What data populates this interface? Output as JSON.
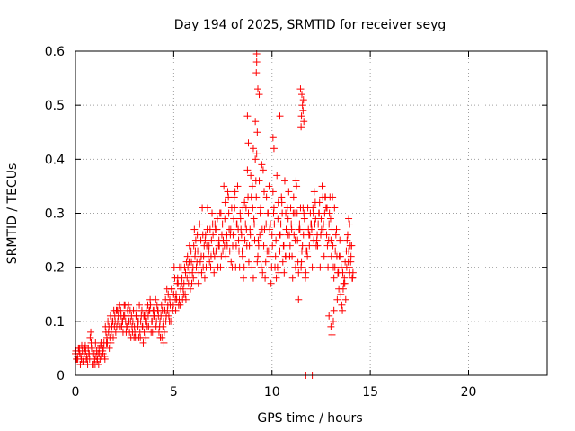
{
  "chart_data": {
    "type": "scatter",
    "title": "Day 194 of 2025, SRMTID for receiver seyg",
    "xlabel": "GPS time / hours",
    "ylabel": "SRMTID / TECUs",
    "xlim": [
      0,
      24
    ],
    "ylim": [
      0,
      0.6
    ],
    "xticks": [
      0,
      5,
      10,
      15,
      20
    ],
    "yticks": [
      0,
      0.1,
      0.2,
      0.3,
      0.4,
      0.5,
      0.6
    ],
    "grid": true,
    "marker": "+",
    "color": "#ff0000",
    "series": [
      {
        "name": "SRMTID",
        "x": [
          0.0,
          0.1,
          0.2,
          0.3,
          0.4,
          0.5,
          0.6,
          0.7,
          0.8,
          0.9,
          1.0,
          1.1,
          1.2,
          1.3,
          1.4,
          1.5,
          1.6,
          1.7,
          1.8,
          1.9,
          2.0,
          2.1,
          2.2,
          2.3,
          2.4,
          2.5,
          2.6,
          2.7,
          2.8,
          2.9,
          3.0,
          3.1,
          3.2,
          3.3,
          3.4,
          3.5,
          3.6,
          3.7,
          3.8,
          3.9,
          4.0,
          4.1,
          4.2,
          4.3,
          4.4,
          4.5,
          4.6,
          4.7,
          4.8,
          4.9,
          5.0,
          5.1,
          5.2,
          5.3,
          5.4,
          5.5,
          5.6,
          5.7,
          5.8,
          5.9,
          6.0,
          6.1,
          6.2,
          6.3,
          6.4,
          6.5,
          6.6,
          6.7,
          6.8,
          6.9,
          7.0,
          7.1,
          7.2,
          7.3,
          7.4,
          7.5,
          7.6,
          7.7,
          7.8,
          7.9,
          8.0,
          8.1,
          8.2,
          8.3,
          8.4,
          8.5,
          8.6,
          8.7,
          8.8,
          8.9,
          9.0,
          9.1,
          9.2,
          9.3,
          9.4,
          9.5,
          9.6,
          9.7,
          9.8,
          9.9,
          10.0,
          10.1,
          10.2,
          10.3,
          10.4,
          10.5,
          10.6,
          10.7,
          10.8,
          10.9,
          11.0,
          11.1,
          11.2,
          11.3,
          11.4,
          11.5,
          11.6,
          11.7,
          11.8,
          11.9,
          12.0,
          12.1,
          12.2,
          12.3,
          12.4,
          12.5,
          12.6,
          12.7,
          12.8,
          12.9,
          13.0,
          13.1,
          13.2,
          13.3,
          13.4,
          13.5,
          13.6,
          13.7,
          13.8,
          13.9,
          14.0,
          14.1,
          0.05,
          0.15,
          0.25,
          0.35,
          0.45,
          0.55,
          0.65,
          0.75,
          0.85,
          0.95,
          1.05,
          1.15,
          1.25,
          1.35,
          1.45,
          1.55,
          1.65,
          1.75,
          1.85,
          1.95,
          2.05,
          2.15,
          2.25,
          2.35,
          2.45,
          2.55,
          2.65,
          2.75,
          2.85,
          2.95,
          3.05,
          3.15,
          3.25,
          3.35,
          3.45,
          3.55,
          3.65,
          3.75,
          3.85,
          3.95,
          4.05,
          4.15,
          4.25,
          4.35,
          4.45,
          4.55,
          4.65,
          4.75,
          4.85,
          4.95,
          5.05,
          5.15,
          5.25,
          5.35,
          5.45,
          5.55,
          5.65,
          5.75,
          5.85,
          5.95,
          6.05,
          6.15,
          6.25,
          6.35,
          6.45,
          6.55,
          6.65,
          6.75,
          6.85,
          6.95,
          7.05,
          7.15,
          7.25,
          7.35,
          7.45,
          7.55,
          7.65,
          7.75,
          7.85,
          7.95,
          8.05,
          8.15,
          8.25,
          8.35,
          8.45,
          8.55,
          8.65,
          8.75,
          8.85,
          8.95,
          9.05,
          9.15,
          9.25,
          9.35,
          9.45,
          9.55,
          9.65,
          9.75,
          9.85,
          9.95,
          10.05,
          10.15,
          10.25,
          10.35,
          10.45,
          10.55,
          10.65,
          10.75,
          10.85,
          10.95,
          11.05,
          11.15,
          11.25,
          11.35,
          11.45,
          11.55,
          11.65,
          11.75,
          11.85,
          11.95,
          12.05,
          12.15,
          12.25,
          12.35,
          12.45,
          12.55,
          12.65,
          12.75,
          12.85,
          12.95,
          13.05,
          13.15,
          13.25,
          13.35,
          13.45,
          13.55,
          13.65,
          13.75,
          13.85,
          13.95,
          14.05,
          0.02,
          0.12,
          0.22,
          0.32,
          0.42,
          0.52,
          0.62,
          0.72,
          0.82,
          0.92,
          1.02,
          1.12,
          1.22,
          1.32,
          1.42,
          1.52,
          1.62,
          1.72,
          1.82,
          1.92,
          2.02,
          2.12,
          2.22,
          2.32,
          2.42,
          2.52,
          2.62,
          2.72,
          2.82,
          2.92,
          3.02,
          3.12,
          3.22,
          3.32,
          3.42,
          3.52,
          3.62,
          3.72,
          3.82,
          3.92,
          4.02,
          4.12,
          4.22,
          4.32,
          4.42,
          4.52,
          4.62,
          4.72,
          4.82,
          4.92,
          5.02,
          5.12,
          5.22,
          5.32,
          5.42,
          5.52,
          5.62,
          5.72,
          5.82,
          5.92,
          6.02,
          6.12,
          6.22,
          6.32,
          6.42,
          6.52,
          6.62,
          6.72,
          6.82,
          6.92,
          7.02,
          7.12,
          7.22,
          7.32,
          7.42,
          7.52,
          7.62,
          7.72,
          7.82,
          7.92,
          8.02,
          8.12,
          8.22,
          8.32,
          8.42,
          8.52,
          8.62,
          8.72,
          8.82,
          8.92,
          9.02,
          9.12,
          9.22,
          9.32,
          9.42,
          9.52,
          9.62,
          9.72,
          9.82,
          9.92,
          10.02,
          10.12,
          10.22,
          10.32,
          10.42,
          10.52,
          10.62,
          10.72,
          10.82,
          10.92,
          11.02,
          11.12,
          11.22,
          11.32,
          11.42,
          11.52,
          11.62,
          11.72,
          11.82,
          11.92,
          12.02,
          12.12,
          12.22,
          12.32,
          12.42,
          12.52,
          12.62,
          12.72,
          12.82,
          12.92,
          13.02,
          13.12,
          13.22,
          13.32,
          13.42,
          13.52,
          13.62,
          13.72,
          13.82,
          13.92,
          14.02,
          14.12,
          0.08,
          0.18,
          0.28,
          0.38,
          0.48,
          0.58,
          0.68,
          0.78,
          0.88,
          0.98,
          1.08,
          1.18,
          1.28,
          1.38,
          1.48,
          1.58,
          1.68,
          1.78,
          1.88,
          1.98,
          2.08,
          2.18,
          2.28,
          2.38,
          2.48,
          2.58,
          2.68,
          2.78,
          2.88,
          2.98,
          3.08,
          3.18,
          3.28,
          3.38,
          3.48,
          3.58,
          3.68,
          3.78,
          3.88,
          3.98,
          4.08,
          4.18,
          4.28,
          4.38,
          4.48,
          4.58,
          4.68,
          4.78,
          4.88,
          4.98,
          5.08,
          5.18,
          5.28,
          5.38,
          5.48,
          5.58,
          5.68,
          5.78,
          5.88,
          5.98,
          6.08,
          6.18,
          6.28,
          6.38,
          6.48,
          6.58,
          6.68,
          6.78,
          6.88,
          6.98,
          7.08,
          7.18,
          7.28,
          7.38,
          7.48,
          7.58,
          7.68,
          7.78,
          7.88,
          7.98,
          8.08,
          8.18,
          8.28,
          8.38,
          8.48,
          8.58,
          8.68,
          8.78,
          8.88,
          8.98,
          9.08,
          9.18,
          9.28,
          9.38,
          9.48,
          9.58,
          9.68,
          9.78,
          9.88,
          9.98,
          10.08,
          10.18,
          10.28,
          10.38,
          10.48,
          10.58,
          10.68,
          10.78,
          10.88,
          10.98,
          11.08,
          11.18,
          11.28,
          11.38,
          11.48,
          11.58,
          11.68,
          11.78,
          11.88,
          11.98,
          12.08,
          12.18,
          12.28,
          12.38,
          12.48,
          12.58,
          12.68,
          12.78,
          12.88,
          12.98,
          13.08,
          13.18,
          13.28,
          13.38,
          13.48,
          13.58,
          13.68,
          13.78,
          13.88,
          13.98,
          14.08,
          9.22,
          9.22,
          9.2,
          9.28,
          9.15,
          9.25,
          9.35,
          8.75,
          8.8,
          9.05,
          11.52,
          11.55,
          11.5,
          11.48,
          11.45,
          11.6,
          11.58,
          11.62,
          10.05,
          10.1,
          10.4,
          11.35,
          12.9,
          13.0,
          13.05,
          13.12,
          13.15,
          12.05,
          13.9,
          13.95,
          11.72
        ],
        "y": [
          0.04,
          0.035,
          0.05,
          0.03,
          0.025,
          0.055,
          0.03,
          0.04,
          0.06,
          0.03,
          0.02,
          0.025,
          0.05,
          0.06,
          0.04,
          0.03,
          0.07,
          0.09,
          0.06,
          0.1,
          0.11,
          0.09,
          0.12,
          0.12,
          0.1,
          0.11,
          0.09,
          0.13,
          0.1,
          0.08,
          0.09,
          0.11,
          0.1,
          0.07,
          0.09,
          0.08,
          0.12,
          0.11,
          0.14,
          0.1,
          0.11,
          0.09,
          0.12,
          0.1,
          0.07,
          0.06,
          0.1,
          0.13,
          0.14,
          0.16,
          0.15,
          0.12,
          0.18,
          0.2,
          0.17,
          0.15,
          0.19,
          0.22,
          0.24,
          0.21,
          0.18,
          0.23,
          0.26,
          0.28,
          0.22,
          0.2,
          0.25,
          0.27,
          0.24,
          0.22,
          0.26,
          0.28,
          0.27,
          0.25,
          0.3,
          0.23,
          0.29,
          0.26,
          0.3,
          0.27,
          0.24,
          0.31,
          0.28,
          0.25,
          0.29,
          0.22,
          0.32,
          0.27,
          0.3,
          0.26,
          0.35,
          0.28,
          0.33,
          0.25,
          0.3,
          0.27,
          0.34,
          0.28,
          0.3,
          0.22,
          0.26,
          0.31,
          0.25,
          0.29,
          0.23,
          0.32,
          0.24,
          0.3,
          0.26,
          0.22,
          0.27,
          0.33,
          0.2,
          0.25,
          0.28,
          0.21,
          0.26,
          0.18,
          0.22,
          0.24,
          0.28,
          0.3,
          0.32,
          0.26,
          0.3,
          0.29,
          0.27,
          0.33,
          0.31,
          0.28,
          0.25,
          0.24,
          0.2,
          0.22,
          0.16,
          0.15,
          0.19,
          0.17,
          0.2,
          0.23,
          0.21,
          0.18,
          0.03,
          0.05,
          0.02,
          0.045,
          0.04,
          0.03,
          0.05,
          0.07,
          0.02,
          0.04,
          0.035,
          0.04,
          0.03,
          0.05,
          0.06,
          0.08,
          0.1,
          0.07,
          0.09,
          0.12,
          0.08,
          0.1,
          0.13,
          0.09,
          0.11,
          0.1,
          0.12,
          0.08,
          0.11,
          0.12,
          0.07,
          0.1,
          0.13,
          0.11,
          0.06,
          0.1,
          0.09,
          0.12,
          0.08,
          0.12,
          0.09,
          0.13,
          0.08,
          0.11,
          0.09,
          0.12,
          0.16,
          0.11,
          0.1,
          0.12,
          0.18,
          0.14,
          0.13,
          0.16,
          0.14,
          0.2,
          0.21,
          0.17,
          0.16,
          0.19,
          0.27,
          0.2,
          0.17,
          0.21,
          0.31,
          0.24,
          0.2,
          0.22,
          0.27,
          0.3,
          0.19,
          0.23,
          0.2,
          0.3,
          0.26,
          0.35,
          0.22,
          0.34,
          0.23,
          0.31,
          0.29,
          0.2,
          0.35,
          0.2,
          0.26,
          0.18,
          0.28,
          0.38,
          0.24,
          0.33,
          0.18,
          0.4,
          0.21,
          0.36,
          0.2,
          0.38,
          0.18,
          0.23,
          0.35,
          0.17,
          0.34,
          0.2,
          0.37,
          0.19,
          0.28,
          0.21,
          0.36,
          0.22,
          0.34,
          0.31,
          0.18,
          0.3,
          0.35,
          0.19,
          0.31,
          0.24,
          0.29,
          0.23,
          0.27,
          0.3,
          0.2,
          0.34,
          0.24,
          0.28,
          0.2,
          0.35,
          0.22,
          0.31,
          0.2,
          0.33,
          0.27,
          0.18,
          0.26,
          0.19,
          0.25,
          0.13,
          0.17,
          0.14,
          0.26,
          0.19,
          0.24,
          0.045,
          0.03,
          0.04,
          0.055,
          0.03,
          0.045,
          0.02,
          0.03,
          0.05,
          0.02,
          0.06,
          0.03,
          0.04,
          0.035,
          0.05,
          0.09,
          0.06,
          0.05,
          0.08,
          0.07,
          0.1,
          0.12,
          0.1,
          0.11,
          0.08,
          0.13,
          0.09,
          0.1,
          0.07,
          0.1,
          0.08,
          0.12,
          0.07,
          0.1,
          0.09,
          0.11,
          0.1,
          0.09,
          0.13,
          0.08,
          0.12,
          0.1,
          0.11,
          0.07,
          0.12,
          0.08,
          0.11,
          0.15,
          0.13,
          0.15,
          0.2,
          0.15,
          0.17,
          0.13,
          0.18,
          0.17,
          0.14,
          0.2,
          0.19,
          0.17,
          0.24,
          0.25,
          0.23,
          0.28,
          0.19,
          0.22,
          0.26,
          0.31,
          0.21,
          0.25,
          0.23,
          0.27,
          0.29,
          0.24,
          0.22,
          0.25,
          0.32,
          0.24,
          0.27,
          0.21,
          0.26,
          0.34,
          0.28,
          0.23,
          0.27,
          0.31,
          0.25,
          0.24,
          0.21,
          0.37,
          0.31,
          0.25,
          0.41,
          0.24,
          0.31,
          0.19,
          0.27,
          0.33,
          0.23,
          0.28,
          0.24,
          0.28,
          0.18,
          0.32,
          0.26,
          0.3,
          0.19,
          0.27,
          0.29,
          0.24,
          0.22,
          0.26,
          0.36,
          0.21,
          0.27,
          0.23,
          0.3,
          0.19,
          0.31,
          0.26,
          0.27,
          0.25,
          0.29,
          0.24,
          0.32,
          0.27,
          0.28,
          0.33,
          0.24,
          0.3,
          0.22,
          0.2,
          0.23,
          0.14,
          0.22,
          0.2,
          0.16,
          0.21,
          0.25,
          0.2,
          0.22,
          0.19,
          0.03,
          0.045,
          0.035,
          0.025,
          0.05,
          0.035,
          0.04,
          0.08,
          0.04,
          0.03,
          0.045,
          0.02,
          0.055,
          0.045,
          0.035,
          0.06,
          0.08,
          0.11,
          0.1,
          0.09,
          0.12,
          0.11,
          0.09,
          0.1,
          0.13,
          0.08,
          0.11,
          0.12,
          0.09,
          0.07,
          0.11,
          0.09,
          0.08,
          0.12,
          0.11,
          0.07,
          0.13,
          0.12,
          0.1,
          0.11,
          0.14,
          0.12,
          0.09,
          0.13,
          0.1,
          0.14,
          0.12,
          0.1,
          0.16,
          0.13,
          0.14,
          0.17,
          0.14,
          0.2,
          0.16,
          0.15,
          0.18,
          0.21,
          0.23,
          0.2,
          0.22,
          0.21,
          0.19,
          0.25,
          0.26,
          0.18,
          0.24,
          0.23,
          0.2,
          0.28,
          0.22,
          0.27,
          0.24,
          0.2,
          0.28,
          0.24,
          0.25,
          0.33,
          0.26,
          0.2,
          0.33,
          0.24,
          0.27,
          0.3,
          0.23,
          0.2,
          0.31,
          0.33,
          0.27,
          0.2,
          0.29,
          0.36,
          0.22,
          0.26,
          0.39,
          0.24,
          0.21,
          0.3,
          0.27,
          0.2,
          0.3,
          0.22,
          0.2,
          0.26,
          0.33,
          0.24,
          0.22,
          0.31,
          0.26,
          0.28,
          0.3,
          0.25,
          0.3,
          0.27,
          0.2,
          0.31,
          0.27,
          0.23,
          0.26,
          0.28,
          0.31,
          0.28,
          0.25,
          0.3,
          0.26,
          0.33,
          0.3,
          0.26,
          0.25,
          0.29,
          0.33,
          0.31,
          0.27,
          0.19,
          0.22,
          0.12,
          0.18,
          0.23,
          0.21,
          0.24,
          0.18,
          0.595,
          0.58,
          0.56,
          0.53,
          0.47,
          0.45,
          0.52,
          0.48,
          0.43,
          0.42,
          0.52,
          0.5,
          0.48,
          0.46,
          0.53,
          0.51,
          0.49,
          0.47,
          0.44,
          0.42,
          0.48,
          0.14,
          0.11,
          0.09,
          0.075,
          0.1,
          0.12,
          0.0,
          0.29,
          0.28,
          0.0
        ]
      }
    ]
  }
}
